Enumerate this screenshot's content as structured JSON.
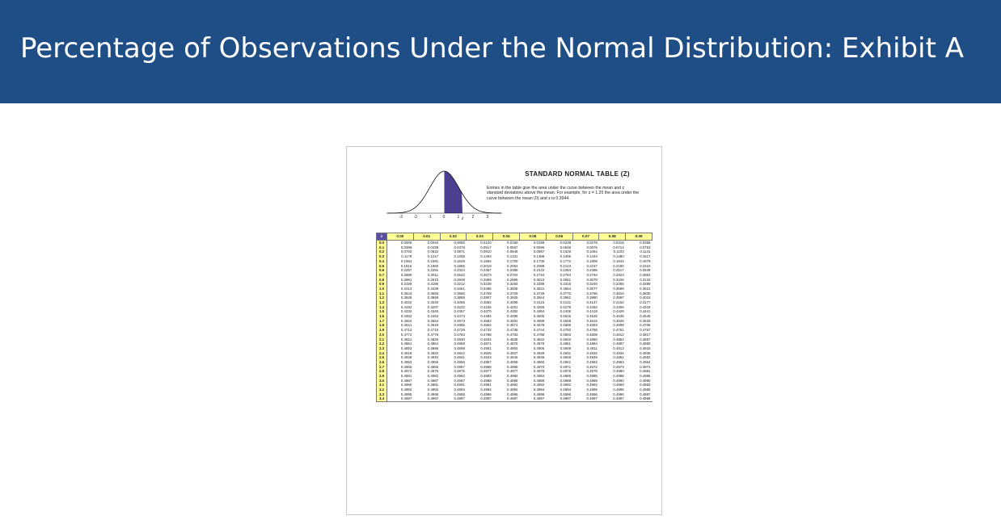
{
  "slide": {
    "title": "Percentage of Observations Under the Normal Distribution: Exhibit A"
  },
  "exhibit": {
    "table_title": "STANDARD NORMAL TABLE (Z)",
    "description": "Entries in the table give the area under the curve between the mean and z standard deviations above the mean. For example, for z = 1.25 the area under the curve between the mean (0) and z is 0.3944.",
    "curve_axis_labels": [
      "-3",
      "-2",
      "-1",
      "0",
      "1",
      "2",
      "3"
    ],
    "curve_z_label": "z",
    "colors": {
      "curve_shade": "#4b3f8f",
      "header_fill": "#ffff96",
      "corner_fill": "#5a4fa0",
      "banner": "#1f4e87"
    },
    "corner_label": "z",
    "columns": [
      "0.00",
      "0.01",
      "0.02",
      "0.03",
      "0.04",
      "0.05",
      "0.06",
      "0.07",
      "0.08",
      "0.09"
    ],
    "rows": [
      {
        "z": "0.0",
        "v": [
          "0.0000",
          "0.0040",
          "0.0080",
          "0.0120",
          "0.0160",
          "0.0199",
          "0.0239",
          "0.0279",
          "0.0319",
          "0.0359"
        ]
      },
      {
        "z": "0.1",
        "v": [
          "0.0398",
          "0.0438",
          "0.0478",
          "0.0517",
          "0.0557",
          "0.0596",
          "0.0636",
          "0.0675",
          "0.0714",
          "0.0753"
        ]
      },
      {
        "z": "0.2",
        "v": [
          "0.0793",
          "0.0832",
          "0.0871",
          "0.0910",
          "0.0948",
          "0.0987",
          "0.1026",
          "0.1064",
          "0.1103",
          "0.1141"
        ]
      },
      {
        "z": "0.3",
        "v": [
          "0.1179",
          "0.1217",
          "0.1255",
          "0.1293",
          "0.1331",
          "0.1368",
          "0.1406",
          "0.1443",
          "0.1480",
          "0.1517"
        ]
      },
      {
        "z": "0.4",
        "v": [
          "0.1554",
          "0.1591",
          "0.1628",
          "0.1664",
          "0.1700",
          "0.1736",
          "0.1772",
          "0.1808",
          "0.1844",
          "0.1879"
        ]
      },
      {
        "z": "0.5",
        "v": [
          "0.1915",
          "0.1950",
          "0.1985",
          "0.2019",
          "0.2054",
          "0.2088",
          "0.2123",
          "0.2157",
          "0.2190",
          "0.2224"
        ]
      },
      {
        "z": "0.6",
        "v": [
          "0.2257",
          "0.2291",
          "0.2324",
          "0.2357",
          "0.2389",
          "0.2422",
          "0.2454",
          "0.2486",
          "0.2517",
          "0.2549"
        ]
      },
      {
        "z": "0.7",
        "v": [
          "0.2580",
          "0.2611",
          "0.2642",
          "0.2673",
          "0.2704",
          "0.2734",
          "0.2764",
          "0.2794",
          "0.2823",
          "0.2852"
        ]
      },
      {
        "z": "0.8",
        "v": [
          "0.2881",
          "0.2910",
          "0.2939",
          "0.2969",
          "0.2995",
          "0.3023",
          "0.3051",
          "0.3078",
          "0.3106",
          "0.3133"
        ]
      },
      {
        "z": "0.9",
        "v": [
          "0.3159",
          "0.3186",
          "0.3212",
          "0.3238",
          "0.3264",
          "0.3289",
          "0.3315",
          "0.3340",
          "0.3365",
          "0.3389"
        ]
      },
      {
        "z": "1.0",
        "v": [
          "0.3413",
          "0.3438",
          "0.3461",
          "0.3485",
          "0.3508",
          "0.3531",
          "0.3554",
          "0.3577",
          "0.3599",
          "0.3621"
        ]
      },
      {
        "z": "1.1",
        "v": [
          "0.3643",
          "0.3665",
          "0.3686",
          "0.3708",
          "0.3729",
          "0.3749",
          "0.3770",
          "0.3790",
          "0.3810",
          "0.3830"
        ]
      },
      {
        "z": "1.2",
        "v": [
          "0.3849",
          "0.3869",
          "0.3888",
          "0.3907",
          "0.3925",
          "0.3944",
          "0.3962",
          "0.3980",
          "0.3997",
          "0.4015"
        ]
      },
      {
        "z": "1.3",
        "v": [
          "0.4032",
          "0.4049",
          "0.4066",
          "0.4082",
          "0.4099",
          "0.4115",
          "0.4131",
          "0.4147",
          "0.4162",
          "0.4177"
        ]
      },
      {
        "z": "1.4",
        "v": [
          "0.4192",
          "0.4207",
          "0.4222",
          "0.4236",
          "0.4251",
          "0.4265",
          "0.4279",
          "0.4292",
          "0.4306",
          "0.4319"
        ]
      },
      {
        "z": "1.5",
        "v": [
          "0.4332",
          "0.4345",
          "0.4357",
          "0.4370",
          "0.4382",
          "0.4394",
          "0.4406",
          "0.4418",
          "0.4429",
          "0.4441"
        ]
      },
      {
        "z": "1.6",
        "v": [
          "0.4452",
          "0.4463",
          "0.4474",
          "0.4484",
          "0.4495",
          "0.4505",
          "0.4515",
          "0.4525",
          "0.4535",
          "0.4545"
        ]
      },
      {
        "z": "1.7",
        "v": [
          "0.4554",
          "0.4564",
          "0.4573",
          "0.4582",
          "0.4591",
          "0.4599",
          "0.4608",
          "0.4616",
          "0.4625",
          "0.4633"
        ]
      },
      {
        "z": "1.8",
        "v": [
          "0.4641",
          "0.4649",
          "0.4656",
          "0.4664",
          "0.4671",
          "0.4678",
          "0.4686",
          "0.4693",
          "0.4699",
          "0.4706"
        ]
      },
      {
        "z": "1.9",
        "v": [
          "0.4713",
          "0.4719",
          "0.4726",
          "0.4732",
          "0.4738",
          "0.4744",
          "0.4750",
          "0.4756",
          "0.4761",
          "0.4767"
        ]
      },
      {
        "z": "2.0",
        "v": [
          "0.4772",
          "0.4778",
          "0.4783",
          "0.4788",
          "0.4793",
          "0.4798",
          "0.4803",
          "0.4808",
          "0.4812",
          "0.4817"
        ]
      },
      {
        "z": "2.1",
        "v": [
          "0.4821",
          "0.4826",
          "0.4830",
          "0.4834",
          "0.4838",
          "0.4842",
          "0.4846",
          "0.4850",
          "0.4854",
          "0.4857"
        ]
      },
      {
        "z": "2.2",
        "v": [
          "0.4861",
          "0.4864",
          "0.4868",
          "0.4871",
          "0.4875",
          "0.4878",
          "0.4881",
          "0.4884",
          "0.4887",
          "0.4890"
        ]
      },
      {
        "z": "2.3",
        "v": [
          "0.4893",
          "0.4896",
          "0.4898",
          "0.4901",
          "0.4904",
          "0.4906",
          "0.4909",
          "0.4911",
          "0.4913",
          "0.4916"
        ]
      },
      {
        "z": "2.4",
        "v": [
          "0.4918",
          "0.4920",
          "0.4922",
          "0.4925",
          "0.4927",
          "0.4929",
          "0.4931",
          "0.4932",
          "0.4934",
          "0.4936"
        ]
      },
      {
        "z": "2.5",
        "v": [
          "0.4938",
          "0.4940",
          "0.4941",
          "0.4943",
          "0.4945",
          "0.4946",
          "0.4948",
          "0.4949",
          "0.4951",
          "0.4952"
        ]
      },
      {
        "z": "2.6",
        "v": [
          "0.4953",
          "0.4955",
          "0.4956",
          "0.4957",
          "0.4959",
          "0.4960",
          "0.4961",
          "0.4962",
          "0.4963",
          "0.4964"
        ]
      },
      {
        "z": "2.7",
        "v": [
          "0.4965",
          "0.4966",
          "0.4967",
          "0.4968",
          "0.4969",
          "0.4970",
          "0.4971",
          "0.4972",
          "0.4973",
          "0.4974"
        ]
      },
      {
        "z": "2.8",
        "v": [
          "0.4974",
          "0.4975",
          "0.4976",
          "0.4977",
          "0.4977",
          "0.4978",
          "0.4979",
          "0.4979",
          "0.4980",
          "0.4981"
        ]
      },
      {
        "z": "2.9",
        "v": [
          "0.4981",
          "0.4982",
          "0.4982",
          "0.4983",
          "0.4984",
          "0.4984",
          "0.4985",
          "0.4985",
          "0.4986",
          "0.4986"
        ]
      },
      {
        "z": "3.0",
        "v": [
          "0.4987",
          "0.4987",
          "0.4987",
          "0.4988",
          "0.4988",
          "0.4989",
          "0.4989",
          "0.4989",
          "0.4990",
          "0.4990"
        ]
      },
      {
        "z": "3.1",
        "v": [
          "0.4990",
          "0.4991",
          "0.4991",
          "0.4991",
          "0.4992",
          "0.4992",
          "0.4992",
          "0.4992",
          "0.4993",
          "0.4993"
        ]
      },
      {
        "z": "3.2",
        "v": [
          "0.4993",
          "0.4993",
          "0.4994",
          "0.4994",
          "0.4994",
          "0.4994",
          "0.4994",
          "0.4995",
          "0.4995",
          "0.4995"
        ]
      },
      {
        "z": "3.3",
        "v": [
          "0.4995",
          "0.4995",
          "0.4995",
          "0.4996",
          "0.4996",
          "0.4996",
          "0.4996",
          "0.4996",
          "0.4996",
          "0.4997"
        ]
      },
      {
        "z": "3.4",
        "v": [
          "0.4997",
          "0.4997",
          "0.4997",
          "0.4997",
          "0.4997",
          "0.4997",
          "0.4997",
          "0.4997",
          "0.4997",
          "0.4998"
        ]
      }
    ]
  }
}
